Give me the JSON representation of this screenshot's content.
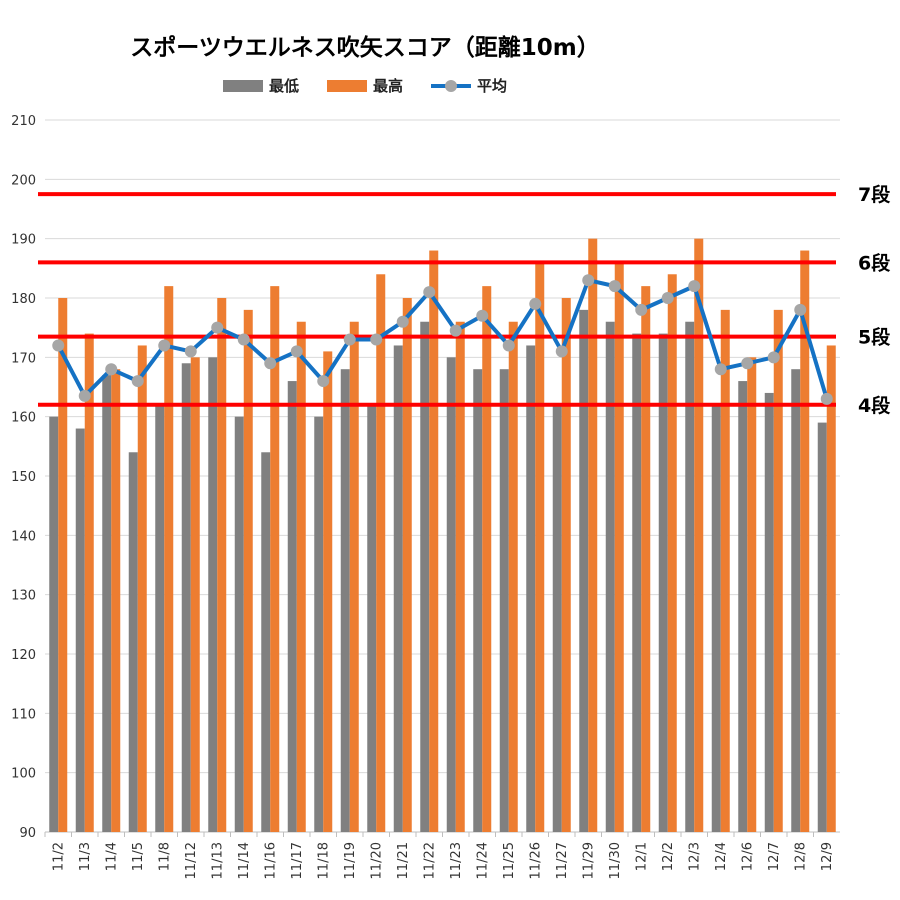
{
  "chart_data": {
    "type": "bar",
    "title": "スポーツウエルネス吹矢スコア（距離10m）",
    "categories": [
      "11/2",
      "11/3",
      "11/4",
      "11/5",
      "11/8",
      "11/12",
      "11/13",
      "11/14",
      "11/16",
      "11/17",
      "11/18",
      "11/19",
      "11/20",
      "11/21",
      "11/22",
      "11/23",
      "11/24",
      "11/25",
      "11/26",
      "11/27",
      "11/29",
      "11/30",
      "12/1",
      "12/2",
      "12/3",
      "12/4",
      "12/6",
      "12/7",
      "12/8",
      "12/9"
    ],
    "series": [
      {
        "name": "最低",
        "type": "bar",
        "color": "#808080",
        "values": [
          160,
          158,
          167,
          154,
          162,
          169,
          170,
          160,
          154,
          166,
          160,
          168,
          162,
          172,
          176,
          170,
          168,
          168,
          172,
          162,
          178,
          176,
          174,
          174,
          176,
          162,
          166,
          164,
          168,
          159
        ]
      },
      {
        "name": "最高",
        "type": "bar",
        "color": "#ed7d31",
        "values": [
          180,
          174,
          168,
          172,
          182,
          170,
          180,
          178,
          182,
          176,
          171,
          176,
          184,
          180,
          188,
          176,
          182,
          176,
          186,
          180,
          190,
          186,
          182,
          184,
          190,
          178,
          170,
          178,
          188,
          172
        ]
      },
      {
        "name": "平均",
        "type": "line",
        "color": "#1572c4",
        "marker_color": "#a6a6a6",
        "values": [
          172,
          163.5,
          168,
          166,
          172,
          171,
          175,
          173,
          169,
          171,
          166,
          173,
          173,
          176,
          181,
          174.5,
          177,
          172,
          179,
          171,
          183,
          182,
          178,
          180,
          182,
          168,
          169,
          170,
          178,
          163
        ]
      }
    ],
    "reference_lines": [
      {
        "label": "7段",
        "value": 197.5,
        "color": "#ff0000"
      },
      {
        "label": "6段",
        "value": 186,
        "color": "#ff0000"
      },
      {
        "label": "5段",
        "value": 173.5,
        "color": "#ff0000"
      },
      {
        "label": "4段",
        "value": 162,
        "color": "#ff0000"
      }
    ],
    "ylim": [
      90,
      210
    ],
    "yticks": [
      90,
      100,
      110,
      120,
      130,
      140,
      150,
      160,
      170,
      180,
      190,
      200,
      210
    ],
    "grid": true,
    "legend_position": "top",
    "xlabel": "",
    "ylabel": ""
  }
}
